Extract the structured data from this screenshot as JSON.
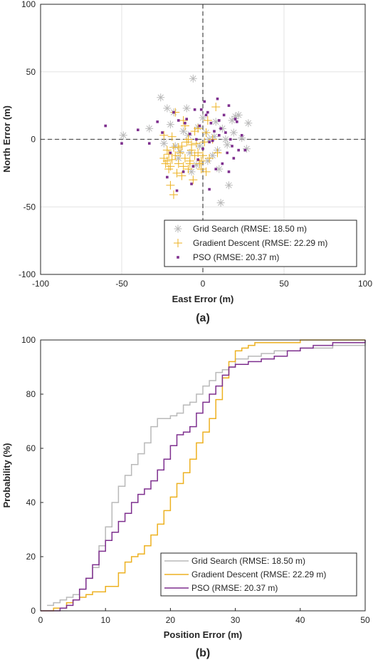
{
  "chart_data": [
    {
      "panel_label": "(a)",
      "type": "scatter",
      "xlabel": "East Error (m)",
      "ylabel": "North Error (m)",
      "xlim": [
        -100,
        100
      ],
      "ylim": [
        -100,
        100
      ],
      "xticks": [
        "-100",
        "-50",
        "0",
        "50",
        "100"
      ],
      "yticks": [
        "100",
        "50",
        "0",
        "-50",
        "-100"
      ],
      "grid": true,
      "legend_position": "bottom-right",
      "series": [
        {
          "name": "Grid Search (RMSE: 18.50 m)",
          "marker": "asterisk",
          "color": "#b9b9b9",
          "x": [
            -49,
            -33,
            -26,
            -22,
            -20,
            -17,
            -15,
            -12,
            -10,
            -8,
            -6,
            -4,
            -3,
            -2,
            0,
            2,
            4,
            6,
            8,
            10,
            12,
            14,
            16,
            18,
            20,
            22,
            24,
            27,
            28,
            15,
            11,
            7,
            -7,
            -14,
            -18,
            -24,
            -9,
            3,
            9,
            19
          ],
          "y": [
            3,
            8,
            31,
            23,
            11,
            -5,
            -14,
            6,
            23,
            -10,
            45,
            -19,
            9,
            -5,
            16,
            5,
            0,
            -12,
            13,
            -22,
            8,
            0,
            -34,
            14,
            17,
            18,
            1,
            -7,
            12,
            -4,
            -47,
            2,
            -24,
            -9,
            20,
            -3,
            3,
            -16,
            -8,
            5
          ]
        },
        {
          "name": "Gradient Descent (RMSE: 22.29 m)",
          "marker": "plus",
          "color": "#edb120",
          "x": [
            -24,
            -23,
            -22,
            -21,
            -20,
            -19,
            -18,
            -17,
            -16,
            -15,
            -14,
            -13,
            -12,
            -11,
            -10,
            -9,
            -8,
            -7,
            -6,
            -5,
            -4,
            -3,
            -2,
            -1,
            0,
            1,
            2,
            3,
            4,
            6,
            8,
            9,
            -22,
            -20,
            -19,
            -17,
            -15,
            -13,
            -11,
            -9,
            -7,
            -5,
            -3,
            -1,
            2,
            -24,
            -21,
            -18,
            -12,
            -8
          ],
          "y": [
            -14,
            -18,
            -16,
            -22,
            -20,
            -15,
            -41,
            -12,
            -25,
            -18,
            -10,
            -5,
            -20,
            -14,
            -2,
            -22,
            -16,
            -8,
            -30,
            -12,
            -3,
            8,
            -18,
            -22,
            -12,
            -2,
            5,
            14,
            -14,
            0,
            24,
            -10,
            -8,
            -34,
            2,
            20,
            -6,
            -27,
            10,
            0,
            -4,
            6,
            -10,
            -16,
            -24,
            3,
            -11,
            -6,
            14,
            -18
          ]
        },
        {
          "name": "PSO (RMSE: 20.37 m)",
          "marker": "square",
          "color": "#7e2f8e",
          "x": [
            -60,
            -50,
            -40,
            -33,
            -25,
            -20,
            -18,
            -15,
            -12,
            -10,
            -8,
            -7,
            -5,
            -3,
            -2,
            0,
            1,
            2,
            3,
            4,
            5,
            6,
            7,
            8,
            9,
            10,
            11,
            12,
            13,
            14,
            15,
            16,
            17,
            18,
            19,
            20,
            21,
            22,
            24,
            26,
            -28,
            -22,
            -16,
            -11,
            -6,
            -1,
            4,
            10,
            16,
            -4
          ],
          "y": [
            10,
            -3,
            7,
            -3,
            5,
            -10,
            20,
            14,
            -24,
            15,
            4,
            -33,
            22,
            -15,
            10,
            -7,
            28,
            18,
            20,
            -37,
            12,
            -1,
            6,
            -22,
            30,
            3,
            8,
            -18,
            18,
            5,
            -10,
            25,
            0,
            -5,
            -14,
            15,
            13,
            -8,
            3,
            -8,
            13,
            -28,
            -38,
            12,
            -20,
            22,
            -2,
            14,
            -24,
            0
          ]
        }
      ]
    },
    {
      "panel_label": "(b)",
      "type": "line",
      "step": true,
      "xlabel": "Position Error (m)",
      "ylabel": "Probability (%)",
      "xlim": [
        0,
        50
      ],
      "ylim": [
        0,
        100
      ],
      "xticks": [
        "0",
        "10",
        "20",
        "30",
        "40",
        "50"
      ],
      "yticks": [
        "100",
        "80",
        "60",
        "40",
        "20",
        "0"
      ],
      "grid": false,
      "legend_position": "bottom-right",
      "series": [
        {
          "name": "Grid Search (RMSE: 18.50 m)",
          "color": "#b9b9b9",
          "x": [
            1,
            2,
            3,
            4,
            5,
            6,
            7,
            8,
            9,
            10,
            11,
            12,
            13,
            14,
            15,
            16,
            17,
            18,
            19,
            20,
            21,
            22,
            23,
            24,
            25,
            26,
            27,
            28,
            29,
            30,
            32,
            34,
            36,
            40,
            45,
            50
          ],
          "y": [
            2,
            3,
            4,
            5,
            6,
            8,
            12,
            16,
            24,
            31,
            40,
            46,
            50,
            54,
            58,
            62,
            68,
            71,
            71,
            72,
            73,
            76,
            77,
            80,
            83,
            85,
            88,
            89,
            90,
            93,
            94,
            95,
            96,
            97,
            98,
            99
          ]
        },
        {
          "name": "Gradient Descent (RMSE: 22.29 m)",
          "color": "#edb120",
          "x": [
            0,
            2,
            4,
            5,
            6,
            7,
            8,
            10,
            12,
            13,
            14,
            15,
            16,
            17,
            18,
            19,
            20,
            21,
            22,
            23,
            24,
            25,
            26,
            27,
            28,
            29,
            30,
            31,
            32,
            33,
            35,
            40,
            45,
            50
          ],
          "y": [
            0,
            1,
            3,
            4,
            5,
            6,
            7,
            9,
            14,
            18,
            20,
            21,
            24,
            28,
            32,
            37,
            42,
            47,
            51,
            56,
            62,
            66,
            71,
            78,
            86,
            92,
            96,
            97,
            98,
            99,
            99,
            100,
            100,
            100
          ]
        },
        {
          "name": "PSO (RMSE: 20.37 m)",
          "color": "#7e2f8e",
          "x": [
            0,
            3,
            4,
            5,
            6,
            7,
            8,
            9,
            10,
            11,
            12,
            13,
            14,
            15,
            16,
            17,
            18,
            19,
            20,
            21,
            22,
            23,
            24,
            25,
            26,
            27,
            28,
            29,
            30,
            32,
            34,
            36,
            38,
            40,
            42,
            45,
            50
          ],
          "y": [
            0,
            1,
            2,
            4,
            8,
            12,
            17,
            22,
            26,
            29,
            33,
            36,
            40,
            43,
            45,
            48,
            52,
            56,
            61,
            65,
            66,
            68,
            73,
            77,
            80,
            83,
            87,
            90,
            91,
            92,
            93,
            94,
            96,
            97,
            98,
            99,
            100
          ]
        }
      ]
    }
  ]
}
